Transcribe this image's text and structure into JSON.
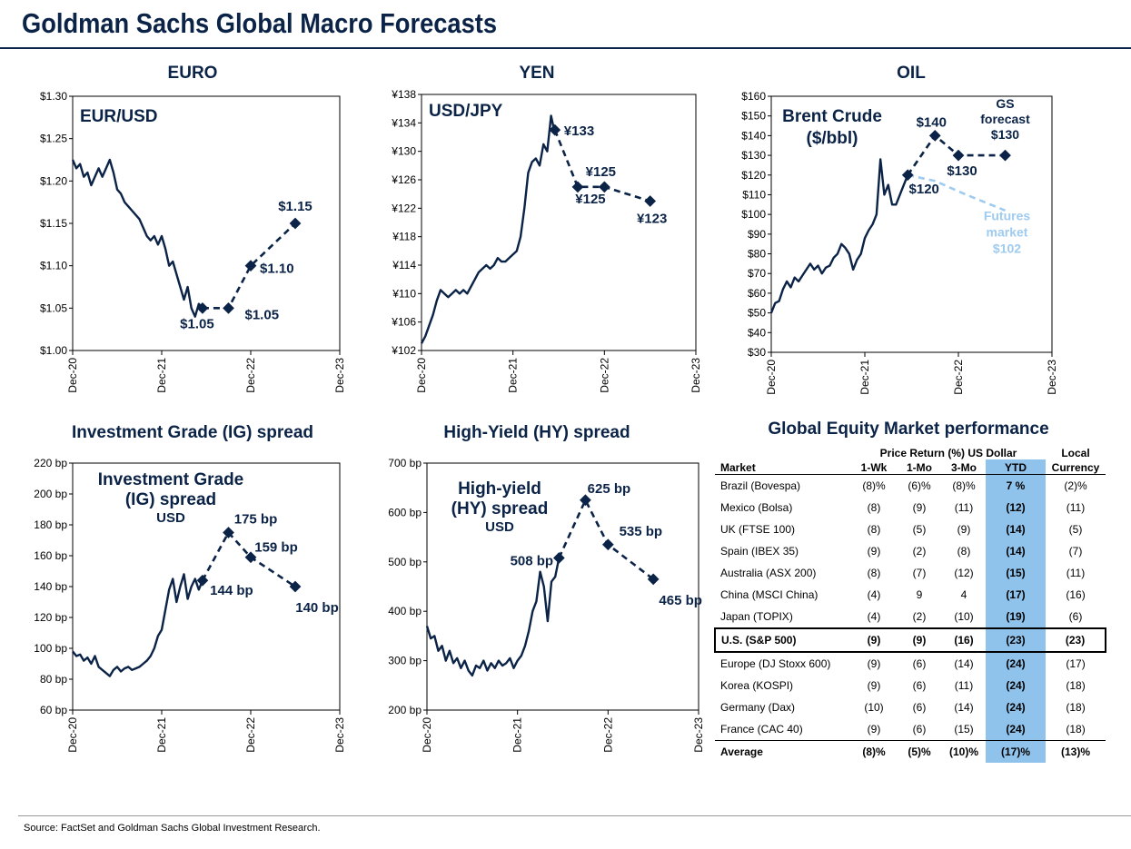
{
  "page": {
    "title": "Goldman Sachs Global Macro Forecasts",
    "source": "Source: FactSet and Goldman Sachs Global Investment Research."
  },
  "colors": {
    "navy": "#0b2347",
    "light_blue": "#8fc3ec",
    "futures": "#9ecbef"
  },
  "chart_data": [
    {
      "id": "euro",
      "type": "line",
      "title": "EURO",
      "inner_label": [
        "EUR/USD"
      ],
      "x_ticks": [
        "Dec-20",
        "Dec-21",
        "Dec-22",
        "Dec-23"
      ],
      "xlim": [
        0,
        36
      ],
      "ylim": [
        1.0,
        1.3
      ],
      "y_ticks": [
        1.0,
        1.05,
        1.1,
        1.15,
        1.2,
        1.25,
        1.3
      ],
      "y_tick_labels": [
        "$1.00",
        "$1.05",
        "$1.10",
        "$1.15",
        "$1.20",
        "$1.25",
        "$1.30"
      ],
      "history": {
        "x": [
          0,
          0.5,
          1,
          1.5,
          2,
          2.5,
          3,
          3.5,
          4,
          4.5,
          5,
          5.5,
          6,
          6.5,
          7,
          7.5,
          8,
          8.5,
          9,
          9.5,
          10,
          10.5,
          11,
          11.5,
          12,
          12.5,
          13,
          13.5,
          14,
          14.5,
          15,
          15.5,
          16,
          16.5,
          17,
          17.5
        ],
        "y": [
          1.225,
          1.215,
          1.22,
          1.205,
          1.21,
          1.195,
          1.205,
          1.215,
          1.205,
          1.215,
          1.225,
          1.21,
          1.19,
          1.185,
          1.175,
          1.17,
          1.165,
          1.16,
          1.155,
          1.145,
          1.135,
          1.13,
          1.135,
          1.125,
          1.135,
          1.12,
          1.1,
          1.105,
          1.09,
          1.075,
          1.06,
          1.075,
          1.05,
          1.04,
          1.055,
          1.05
        ]
      },
      "forecast": {
        "x": [
          17.5,
          21,
          24,
          30
        ],
        "y": [
          1.05,
          1.05,
          1.1,
          1.15
        ]
      },
      "point_labels": [
        "$1.05",
        "$1.05",
        "$1.10",
        "$1.15"
      ]
    },
    {
      "id": "yen",
      "type": "line",
      "title": "YEN",
      "inner_label": [
        "USD/JPY"
      ],
      "x_ticks": [
        "Dec-20",
        "Dec-21",
        "Dec-22",
        "Dec-23"
      ],
      "xlim": [
        0,
        36
      ],
      "ylim": [
        102,
        138
      ],
      "y_ticks": [
        102,
        106,
        110,
        114,
        118,
        122,
        126,
        130,
        134,
        138
      ],
      "y_tick_labels": [
        "¥102",
        "¥106",
        "¥110",
        "¥114",
        "¥118",
        "¥122",
        "¥126",
        "¥130",
        "¥134",
        "¥138"
      ],
      "history": {
        "x": [
          0,
          0.5,
          1,
          1.5,
          2,
          2.5,
          3,
          3.5,
          4,
          4.5,
          5,
          5.5,
          6,
          6.5,
          7,
          7.5,
          8,
          8.5,
          9,
          9.5,
          10,
          10.5,
          11,
          11.5,
          12,
          12.5,
          13,
          13.5,
          14,
          14.5,
          15,
          15.5,
          16,
          16.5,
          17,
          17.5
        ],
        "y": [
          103,
          104,
          105.5,
          107,
          109,
          110.5,
          110,
          109.5,
          110,
          110.5,
          110,
          110.5,
          110,
          111,
          112,
          113,
          113.5,
          114,
          113.5,
          114,
          115,
          114.5,
          114.5,
          115,
          115.5,
          116,
          118,
          122,
          127,
          128.5,
          129,
          128,
          131,
          130,
          135,
          132.5
        ]
      },
      "forecast": {
        "x": [
          17.5,
          20.5,
          24,
          30
        ],
        "y": [
          133,
          125,
          125,
          123
        ]
      },
      "point_labels": [
        "¥133",
        "¥125",
        "¥125",
        "¥123"
      ]
    },
    {
      "id": "oil",
      "type": "line",
      "title": "OIL",
      "inner_label": [
        "Brent  Crude",
        "($/bbl)"
      ],
      "x_ticks": [
        "Dec-20",
        "Dec-21",
        "Dec-22",
        "Dec-23"
      ],
      "xlim": [
        0,
        36
      ],
      "ylim": [
        30,
        160
      ],
      "y_ticks": [
        30,
        40,
        50,
        60,
        70,
        80,
        90,
        100,
        110,
        120,
        130,
        140,
        150,
        160
      ],
      "y_tick_labels": [
        "$30",
        "$40",
        "$50",
        "$60",
        "$70",
        "$80",
        "$90",
        "$100",
        "$110",
        "$120",
        "$130",
        "$140",
        "$150",
        "$160"
      ],
      "history": {
        "x": [
          0,
          0.5,
          1,
          1.5,
          2,
          2.5,
          3,
          3.5,
          4,
          4.5,
          5,
          5.5,
          6,
          6.5,
          7,
          7.5,
          8,
          8.5,
          9,
          9.5,
          10,
          10.5,
          11,
          11.5,
          12,
          12.5,
          13,
          13.5,
          14,
          14.5,
          15,
          15.5,
          16,
          16.5,
          17,
          17.5
        ],
        "y": [
          50,
          55,
          56,
          62,
          66,
          63,
          68,
          66,
          69,
          72,
          75,
          72,
          74,
          70,
          73,
          74,
          78,
          80,
          85,
          83,
          80,
          72,
          77,
          80,
          88,
          92,
          95,
          100,
          128,
          110,
          115,
          105,
          105,
          110,
          115,
          120
        ]
      },
      "forecast": {
        "x": [
          17.5,
          21,
          24,
          30
        ],
        "y": [
          120,
          140,
          130,
          130
        ]
      },
      "point_labels": [
        "$120",
        "$140",
        "$130",
        "$130"
      ],
      "futures": {
        "x": [
          17.5,
          21,
          25,
          30
        ],
        "y": [
          120,
          117,
          110,
          102
        ]
      },
      "annotations": {
        "gs_forecast": [
          "GS",
          "forecast"
        ],
        "futures_market": [
          "Futures",
          "market",
          "$102"
        ]
      }
    },
    {
      "id": "ig",
      "type": "line",
      "title": "Investment Grade (IG) spread",
      "inner_label": [
        "Investment Grade",
        "(IG) spread",
        "USD"
      ],
      "x_ticks": [
        "Dec-20",
        "Dec-21",
        "Dec-22",
        "Dec-23"
      ],
      "xlim": [
        0,
        36
      ],
      "ylim": [
        60,
        220
      ],
      "y_ticks": [
        60,
        80,
        100,
        120,
        140,
        160,
        180,
        200,
        220
      ],
      "y_tick_labels": [
        "60 bp",
        "80 bp",
        "100 bp",
        "120 bp",
        "140 bp",
        "160 bp",
        "180 bp",
        "200 bp",
        "220 bp"
      ],
      "history": {
        "x": [
          0,
          0.5,
          1,
          1.5,
          2,
          2.5,
          3,
          3.5,
          4,
          4.5,
          5,
          5.5,
          6,
          6.5,
          7,
          7.5,
          8,
          8.5,
          9,
          9.5,
          10,
          10.5,
          11,
          11.5,
          12,
          12.5,
          13,
          13.5,
          14,
          14.5,
          15,
          15.5,
          16,
          16.5,
          17,
          17.5
        ],
        "y": [
          98,
          95,
          96,
          92,
          94,
          90,
          95,
          88,
          86,
          84,
          82,
          86,
          88,
          85,
          87,
          88,
          86,
          87,
          88,
          90,
          92,
          95,
          100,
          108,
          112,
          125,
          138,
          145,
          130,
          140,
          148,
          132,
          140,
          145,
          138,
          144
        ]
      },
      "forecast": {
        "x": [
          17.5,
          21,
          24,
          30
        ],
        "y": [
          144,
          175,
          159,
          140
        ]
      },
      "point_labels": [
        "144 bp",
        "175 bp",
        "159 bp",
        "140 bp"
      ]
    },
    {
      "id": "hy",
      "type": "line",
      "title": "High-Yield (HY) spread",
      "inner_label": [
        "High-yield",
        "(HY) spread",
        "USD"
      ],
      "x_ticks": [
        "Dec-20",
        "Dec-21",
        "Dec-22",
        "Dec-23"
      ],
      "xlim": [
        0,
        36
      ],
      "ylim": [
        200,
        700
      ],
      "y_ticks": [
        200,
        300,
        400,
        500,
        600,
        700
      ],
      "y_tick_labels": [
        "200 bp",
        "300 bp",
        "400 bp",
        "500 bp",
        "600 bp",
        "700 bp"
      ],
      "history": {
        "x": [
          0,
          0.5,
          1,
          1.5,
          2,
          2.5,
          3,
          3.5,
          4,
          4.5,
          5,
          5.5,
          6,
          6.5,
          7,
          7.5,
          8,
          8.5,
          9,
          9.5,
          10,
          10.5,
          11,
          11.5,
          12,
          12.5,
          13,
          13.5,
          14,
          14.5,
          15,
          15.5,
          16,
          16.5,
          17,
          17.5
        ],
        "y": [
          370,
          345,
          350,
          320,
          330,
          300,
          320,
          295,
          305,
          285,
          300,
          280,
          270,
          290,
          285,
          300,
          280,
          295,
          285,
          300,
          290,
          295,
          305,
          285,
          300,
          310,
          330,
          360,
          400,
          420,
          480,
          450,
          380,
          460,
          470,
          508
        ]
      },
      "forecast": {
        "x": [
          17.5,
          21,
          24,
          30
        ],
        "y": [
          508,
          625,
          535,
          465
        ]
      },
      "point_labels": [
        "508 bp",
        "625 bp",
        "535 bp",
        "465 bp"
      ]
    }
  ],
  "equity": {
    "title": "Global Equity Market performance",
    "group_header": "Price Return (%) US Dollar",
    "local_header": "Local",
    "columns": [
      "Market",
      "1-Wk",
      "1-Mo",
      "3-Mo",
      "YTD",
      "Currency"
    ],
    "rows": [
      [
        "Brazil (Bovespa)",
        "(8)%",
        "(6)%",
        "(8)%",
        "7 %",
        "(2)%"
      ],
      [
        "Mexico (Bolsa)",
        "(8)",
        "(9)",
        "(11)",
        "(12)",
        "(11)"
      ],
      [
        "UK (FTSE 100)",
        "(8)",
        "(5)",
        "(9)",
        "(14)",
        "(5)"
      ],
      [
        "Spain (IBEX 35)",
        "(9)",
        "(2)",
        "(8)",
        "(14)",
        "(7)"
      ],
      [
        "Australia (ASX 200)",
        "(8)",
        "(7)",
        "(12)",
        "(15)",
        "(11)"
      ],
      [
        "China (MSCI China)",
        "(4)",
        "9",
        "4",
        "(17)",
        "(16)"
      ],
      [
        "Japan (TOPIX)",
        "(4)",
        "(2)",
        "(10)",
        "(19)",
        "(6)"
      ],
      [
        "U.S. (S&P 500)",
        "(9)",
        "(9)",
        "(16)",
        "(23)",
        "(23)"
      ],
      [
        "Europe (DJ Stoxx 600)",
        "(9)",
        "(6)",
        "(14)",
        "(24)",
        "(17)"
      ],
      [
        "Korea (KOSPI)",
        "(9)",
        "(6)",
        "(11)",
        "(24)",
        "(18)"
      ],
      [
        "Germany (Dax)",
        "(10)",
        "(6)",
        "(14)",
        "(24)",
        "(18)"
      ],
      [
        "France (CAC 40)",
        "(9)",
        "(6)",
        "(15)",
        "(24)",
        "(18)"
      ]
    ],
    "highlight_row": 7,
    "average": [
      "Average",
      "(8)%",
      "(5)%",
      "(10)%",
      "(17)%",
      "(13)%"
    ]
  }
}
